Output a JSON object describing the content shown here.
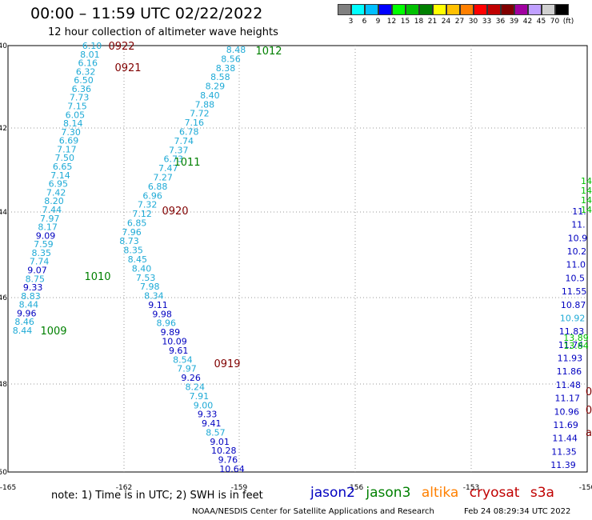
{
  "header": {
    "title": "00:00 – 11:59 UTC 02/22/2022",
    "subtitle": "12 hour collection of altimeter wave heights"
  },
  "colorbar": {
    "colors": [
      "#808080",
      "#00ffff",
      "#00bfff",
      "#0000ff",
      "#00ff00",
      "#00c000",
      "#008000",
      "#ffff00",
      "#ffc000",
      "#ff8000",
      "#ff0000",
      "#c00000",
      "#800000",
      "#a000a0",
      "#c0a0ff",
      "#d0d0d0",
      "#000000"
    ],
    "labels": [
      "3",
      "6",
      "9",
      "12",
      "15",
      "18",
      "21",
      "24",
      "27",
      "30",
      "33",
      "36",
      "39",
      "42",
      "45",
      "70",
      "(ft)"
    ]
  },
  "axes": {
    "lon_ticks": [
      "-165",
      "-162",
      "-159",
      "-156",
      "-153",
      "-150"
    ],
    "lat_ticks": [
      "-40",
      "-42",
      "-44",
      "-46",
      "-48",
      "-50"
    ]
  },
  "satellite_colors": {
    "jason2": "#0000c0",
    "jason3": "#008000",
    "altika": "#ff8000",
    "cryosat": "#c00000",
    "s3a": "#c00000",
    "light": "#1eaad6"
  },
  "dates": [
    "0922",
    "0921",
    "0920",
    "0919"
  ],
  "passes": [
    "1012",
    "1011",
    "1010",
    "1009"
  ],
  "track_a": {
    "values": [
      "6.10",
      "8.01",
      "6.16",
      "6.32",
      "6.50",
      "6.36",
      "7.73",
      "7.15",
      "6.05",
      "8.14",
      "7.30",
      "6.69",
      "7.17",
      "7.50",
      "6.65",
      "7.14",
      "6.95",
      "7.42",
      "8.20",
      "7.44",
      "7.97",
      "8.17",
      "9.09",
      "7.59",
      "8.35",
      "7.74",
      "9.07",
      "8.75",
      "9.33",
      "8.83",
      "8.44",
      "9.96",
      "8.46",
      "8.44"
    ],
    "kinds": [
      "l",
      "l",
      "l",
      "l",
      "l",
      "l",
      "l",
      "l",
      "l",
      "l",
      "l",
      "l",
      "l",
      "l",
      "l",
      "l",
      "l",
      "l",
      "l",
      "l",
      "l",
      "l",
      "d",
      "l",
      "l",
      "l",
      "d",
      "l",
      "d",
      "l",
      "l",
      "d",
      "l",
      "l"
    ]
  },
  "track_b": {
    "values": [
      "8.48",
      "8.56",
      "8.38",
      "8.58",
      "8.29",
      "8.40",
      "7.88",
      "7.72",
      "7.16",
      "6.78",
      "7.74",
      "7.37",
      "6.73",
      "7.47",
      "7.27",
      "6.88",
      "6.96",
      "7.32",
      "7.12",
      "6.85",
      "7.96",
      "8.73",
      "8.35",
      "8.45",
      "8.40",
      "7.53",
      "7.98",
      "8.34",
      "9.11",
      "9.98",
      "8.96",
      "9.89",
      "10.09",
      "9.61",
      "8.54",
      "7.97",
      "9.26",
      "8.24",
      "7.91",
      "9.00",
      "9.33",
      "9.41",
      "8.57",
      "9.01",
      "10.28",
      "9.76",
      "10.64"
    ],
    "kinds": [
      "l",
      "l",
      "l",
      "l",
      "l",
      "l",
      "l",
      "l",
      "l",
      "l",
      "l",
      "l",
      "l",
      "l",
      "l",
      "l",
      "l",
      "l",
      "l",
      "l",
      "l",
      "l",
      "l",
      "l",
      "l",
      "l",
      "l",
      "l",
      "d",
      "d",
      "l",
      "d",
      "d",
      "d",
      "l",
      "l",
      "d",
      "l",
      "l",
      "l",
      "d",
      "d",
      "l",
      "d",
      "d",
      "d",
      "d"
    ]
  },
  "track_c": {
    "values": [
      "11.",
      "11.",
      "10.9",
      "10.2",
      "11.0",
      "10.5",
      "11.55",
      "10.87",
      "10.92",
      "11.83",
      "11.74",
      "11.93",
      "11.86",
      "11.48",
      "11.17",
      "10.96",
      "11.69",
      "11.44",
      "11.35",
      "11.39"
    ],
    "kinds": [
      "d",
      "d",
      "d",
      "d",
      "d",
      "d",
      "d",
      "d",
      "l",
      "d",
      "d",
      "d",
      "d",
      "d",
      "d",
      "d",
      "d",
      "d",
      "d",
      "d"
    ]
  },
  "green_fragments": [
    "14",
    "14",
    "14",
    "14",
    "13.89",
    "13.84"
  ],
  "red_fragments": [
    "0",
    "0",
    "a"
  ],
  "footer": {
    "note": "note:  1) Time is in UTC; 2) SWH is in feet",
    "legend": [
      "jason2",
      "jason3",
      "altika",
      "cryosat",
      "s3a"
    ],
    "credit": "NOAA/NESDIS Center for Satellite Applications and Research",
    "timestamp": "Feb 24 08:29:34 UTC 2022"
  }
}
